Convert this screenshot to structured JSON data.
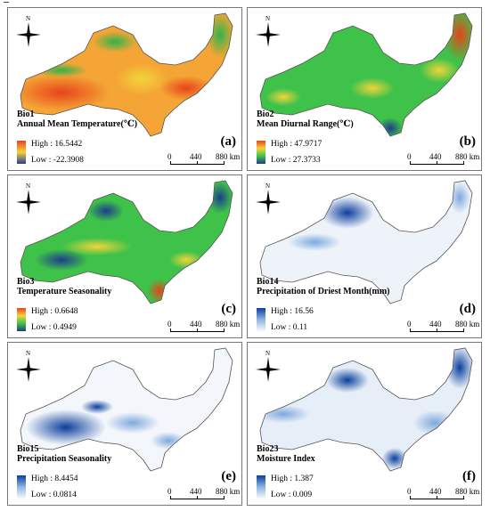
{
  "scale_bar": {
    "zero": "0",
    "mid": "440",
    "end": "880 km"
  },
  "compass": {
    "north_label": "N",
    "icon": "north-arrow-compass-icon"
  },
  "panels": [
    {
      "id": "a",
      "letter": "(a)",
      "var": "Bio1",
      "title": "Annual Mean Temperature(℃)",
      "high": "High : 16.5442",
      "low": "Low : -22.3908",
      "colors": {
        "high": "#e8431b",
        "mid": "#f2d43a",
        "low": "#2a3a9a"
      }
    },
    {
      "id": "b",
      "letter": "(b)",
      "var": "Bio2",
      "title": "Mean Diurnal Range(℃)",
      "high": "High : 47.9717",
      "low": "Low : 27.3733",
      "colors": {
        "high": "#e8431b",
        "mid": "#3ec24a",
        "low": "#1d3c8c"
      }
    },
    {
      "id": "c",
      "letter": "(c)",
      "var": "Bio3",
      "title": "Temperature Seasonality",
      "high": "High : 0.6648",
      "low": "Low : 0.4949",
      "colors": {
        "high": "#e8431b",
        "mid": "#3ec24a",
        "low": "#1d3c8c"
      }
    },
    {
      "id": "d",
      "letter": "(d)",
      "var": "Bio14",
      "title": "Precipitation of Driest Month(mm)",
      "high": "High : 16.56",
      "low": "Low : 0.11",
      "colors": {
        "high": "#0b3f9c",
        "mid": "#b9d0ec",
        "low": "#f7f9fd"
      }
    },
    {
      "id": "e",
      "letter": "(e)",
      "var": "Bio15",
      "title": "Precipitation Seasonality",
      "high": "High : 8.4454",
      "low": "Low : 0.0814",
      "colors": {
        "high": "#0b3f9c",
        "mid": "#b9d0ec",
        "low": "#f7f9fd"
      }
    },
    {
      "id": "f",
      "letter": "(f)",
      "var": "Bio23",
      "title": "Moisture Index",
      "high": "High : 1.387",
      "low": "Low : 0.009",
      "colors": {
        "high": "#0b3f9c",
        "mid": "#b9d0ec",
        "low": "#f7f9fd"
      }
    }
  ]
}
